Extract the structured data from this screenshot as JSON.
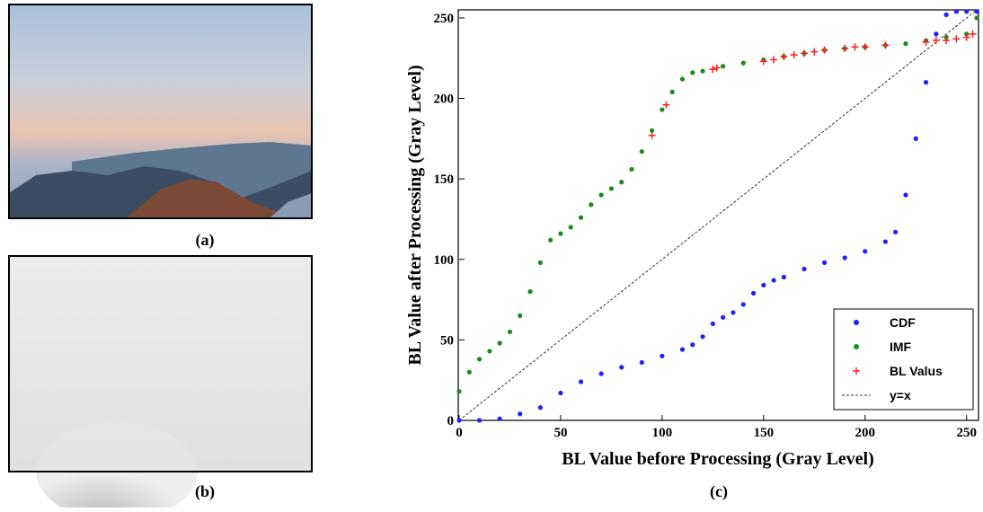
{
  "panels": {
    "a": "(a)",
    "b": "(b)",
    "c": "(c)"
  },
  "chart_data": {
    "type": "scatter",
    "xlabel": "BL Value before Processing (Gray Level)",
    "ylabel": "BL Value after Processing (Gray Level)",
    "xlim": [
      0,
      255
    ],
    "ylim": [
      0,
      255
    ],
    "xticks": [
      0,
      50,
      100,
      150,
      200,
      250
    ],
    "yticks": [
      0,
      50,
      100,
      150,
      200,
      250
    ],
    "legend": "lower right",
    "series": [
      {
        "name": "CDF",
        "color": "#1f1fff",
        "marker": "dot",
        "x": [
          0,
          10,
          20,
          30,
          40,
          50,
          60,
          70,
          80,
          90,
          100,
          110,
          115,
          120,
          125,
          130,
          135,
          140,
          145,
          150,
          155,
          160,
          170,
          180,
          190,
          200,
          210,
          215,
          220,
          225,
          230,
          235,
          240,
          245,
          250,
          255
        ],
        "values": [
          0,
          0,
          1,
          4,
          8,
          17,
          24,
          29,
          33,
          36,
          40,
          44,
          47,
          52,
          60,
          64,
          67,
          72,
          79,
          84,
          87,
          89,
          94,
          98,
          101,
          105,
          111,
          117,
          140,
          175,
          210,
          240,
          252,
          254,
          254,
          254
        ]
      },
      {
        "name": "IMF",
        "color": "#1a8a1a",
        "marker": "dot",
        "x": [
          0,
          5,
          10,
          15,
          20,
          25,
          30,
          35,
          40,
          45,
          50,
          55,
          60,
          65,
          70,
          75,
          80,
          85,
          90,
          95,
          100,
          105,
          110,
          115,
          120,
          130,
          140,
          150,
          160,
          170,
          180,
          190,
          200,
          210,
          220,
          230,
          240,
          250,
          255
        ],
        "values": [
          18,
          30,
          38,
          43,
          48,
          55,
          65,
          80,
          98,
          112,
          116,
          120,
          126,
          134,
          140,
          144,
          148,
          156,
          167,
          180,
          193,
          204,
          212,
          216,
          217,
          220,
          222,
          224,
          226,
          228,
          230,
          231,
          232,
          233,
          234,
          236,
          238,
          240,
          250
        ]
      },
      {
        "name": "BL Valus",
        "color": "#ff2020",
        "marker": "plus",
        "x": [
          95,
          102,
          125,
          127,
          150,
          155,
          160,
          165,
          170,
          175,
          180,
          190,
          195,
          200,
          210,
          230,
          235,
          240,
          245,
          250,
          253
        ],
        "values": [
          177,
          196,
          218,
          219,
          223,
          224,
          226,
          227,
          228,
          229,
          230,
          231,
          232,
          232,
          233,
          235,
          236,
          236,
          237,
          238,
          240
        ]
      },
      {
        "name": "y=x",
        "color": "#333333",
        "marker": "dashed-line",
        "x": [
          0,
          255
        ],
        "values": [
          0,
          255
        ]
      }
    ]
  }
}
